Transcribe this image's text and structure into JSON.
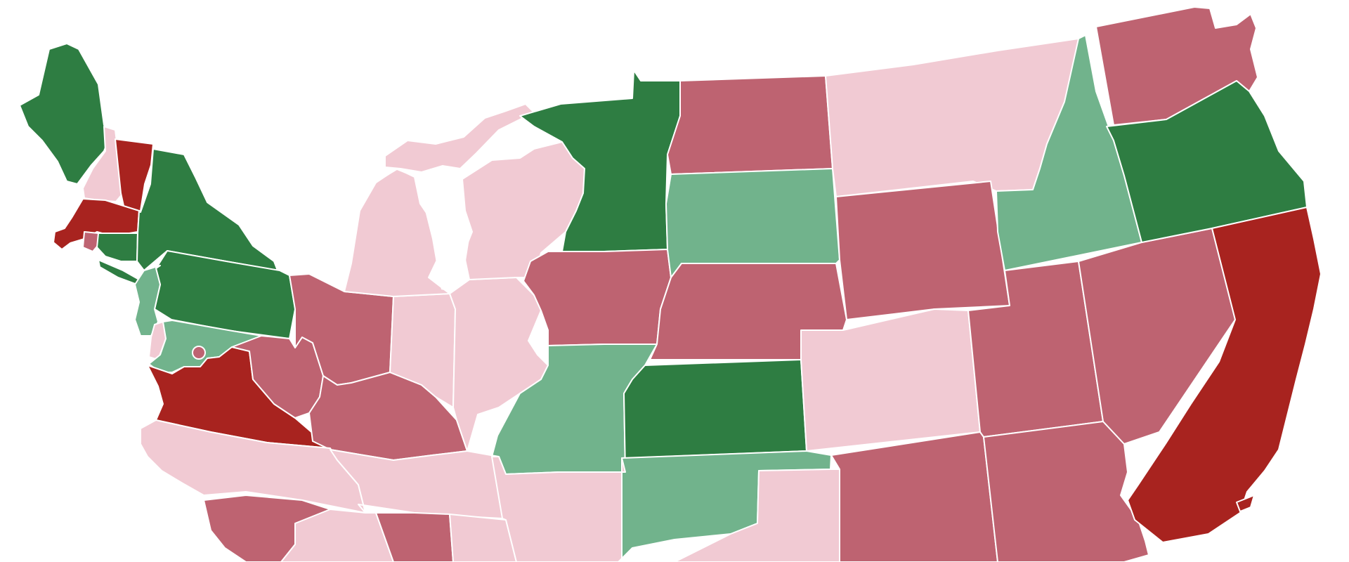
{
  "map": {
    "palette": {
      "strong_red": "#A8231F",
      "medium_red": "#BE6371",
      "light_pink": "#F1CAD3",
      "light_green": "#71B38C",
      "dark_green": "#2E7D42",
      "background": "#FFFFFF",
      "border": "#FFFFFF"
    },
    "states": [
      {
        "id": "ME",
        "color": "dark_green"
      },
      {
        "id": "NH",
        "color": "light_pink"
      },
      {
        "id": "VT",
        "color": "strong_red"
      },
      {
        "id": "MA",
        "color": "strong_red"
      },
      {
        "id": "RI",
        "color": "medium_red"
      },
      {
        "id": "CT",
        "color": "dark_green"
      },
      {
        "id": "NY",
        "color": "dark_green"
      },
      {
        "id": "NJ",
        "color": "light_green"
      },
      {
        "id": "PA",
        "color": "dark_green"
      },
      {
        "id": "DE",
        "color": "light_pink"
      },
      {
        "id": "MD",
        "color": "light_green"
      },
      {
        "id": "DC",
        "color": "medium_red"
      },
      {
        "id": "VA",
        "color": "strong_red"
      },
      {
        "id": "WV",
        "color": "medium_red"
      },
      {
        "id": "OH",
        "color": "medium_red"
      },
      {
        "id": "KY",
        "color": "medium_red"
      },
      {
        "id": "MI",
        "color": "light_pink"
      },
      {
        "id": "IN",
        "color": "light_pink"
      },
      {
        "id": "IL",
        "color": "light_pink"
      },
      {
        "id": "WI",
        "color": "light_pink"
      },
      {
        "id": "MN",
        "color": "dark_green"
      },
      {
        "id": "IA",
        "color": "medium_red"
      },
      {
        "id": "MO",
        "color": "light_green"
      },
      {
        "id": "ND",
        "color": "medium_red"
      },
      {
        "id": "SD",
        "color": "light_green"
      },
      {
        "id": "NE",
        "color": "medium_red"
      },
      {
        "id": "KS",
        "color": "dark_green"
      },
      {
        "id": "OK",
        "color": "light_green"
      },
      {
        "id": "TX",
        "color": "light_pink"
      },
      {
        "id": "NC",
        "color": "light_pink"
      },
      {
        "id": "TN",
        "color": "light_pink"
      },
      {
        "id": "SC",
        "color": "medium_red"
      },
      {
        "id": "GA",
        "color": "light_pink"
      },
      {
        "id": "AL",
        "color": "medium_red"
      },
      {
        "id": "MS",
        "color": "light_pink"
      },
      {
        "id": "AR",
        "color": "light_pink"
      },
      {
        "id": "MT",
        "color": "light_pink"
      },
      {
        "id": "WY",
        "color": "medium_red"
      },
      {
        "id": "CO",
        "color": "light_pink"
      },
      {
        "id": "NM",
        "color": "medium_red"
      },
      {
        "id": "ID",
        "color": "light_green"
      },
      {
        "id": "UT",
        "color": "medium_red"
      },
      {
        "id": "AZ",
        "color": "medium_red"
      },
      {
        "id": "NV",
        "color": "medium_red"
      },
      {
        "id": "WA",
        "color": "medium_red"
      },
      {
        "id": "OR",
        "color": "dark_green"
      },
      {
        "id": "CA",
        "color": "strong_red"
      }
    ]
  }
}
